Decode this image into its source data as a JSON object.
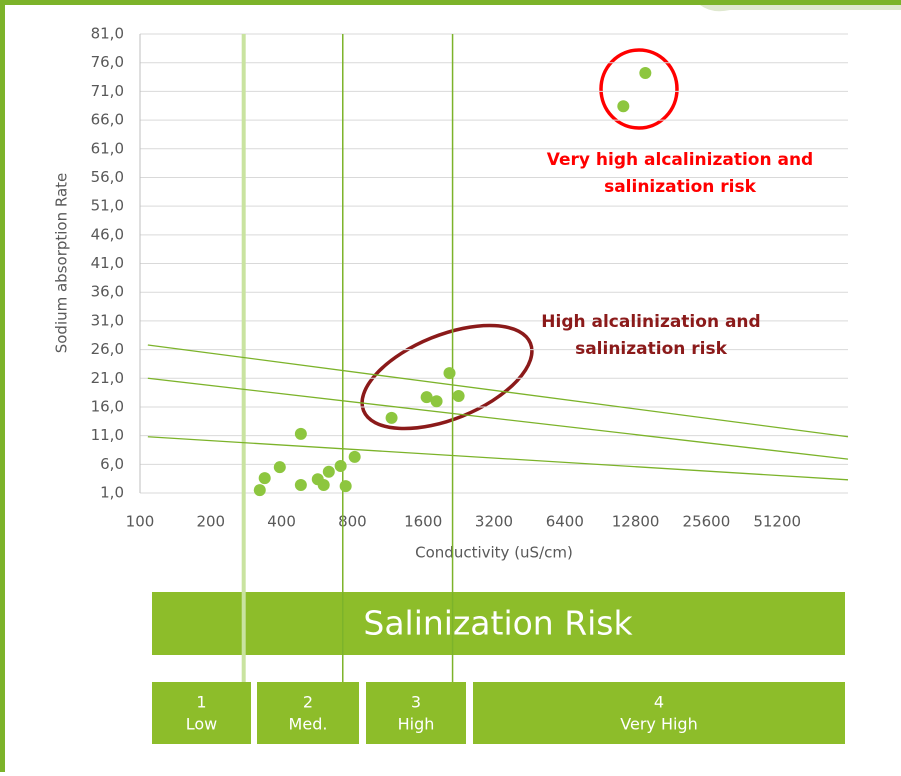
{
  "chart_data": {
    "type": "scatter",
    "x_label": "Conductivity (uS/cm)",
    "y_label": "Sodium absorption Rate",
    "xscale": "log2",
    "xlim": [
      100,
      102400
    ],
    "xticks": [
      100,
      200,
      400,
      800,
      1600,
      3200,
      6400,
      12800,
      25600,
      51200
    ],
    "ylim": [
      1,
      81
    ],
    "yticks": [
      {
        "value": 1,
        "label": "1,0"
      },
      {
        "value": 6,
        "label": "6,0"
      },
      {
        "value": 11,
        "label": "11,0"
      },
      {
        "value": 16,
        "label": "16,0"
      },
      {
        "value": 21,
        "label": "21,0"
      },
      {
        "value": 26,
        "label": "26,0"
      },
      {
        "value": 31,
        "label": "31,0"
      },
      {
        "value": 36,
        "label": "36,0"
      },
      {
        "value": 41,
        "label": "41,0"
      },
      {
        "value": 46,
        "label": "46,0"
      },
      {
        "value": 51,
        "label": "51,0"
      },
      {
        "value": 56,
        "label": "56,0"
      },
      {
        "value": 61,
        "label": "61,0"
      },
      {
        "value": 66,
        "label": "66,0"
      },
      {
        "value": 71,
        "label": "71,0"
      },
      {
        "value": 76,
        "label": "76,0"
      },
      {
        "value": 81,
        "label": "81,0"
      }
    ],
    "grid": true,
    "point_color": "#8dc63f",
    "points": {
      "x": [
        323,
        339,
        393,
        483,
        483,
        570,
        604,
        635,
        713,
        749,
        818,
        1174,
        1655,
        1824,
        2070,
        2263,
        11350,
        14080
      ],
      "y": [
        1.5,
        3.6,
        5.5,
        11.3,
        2.4,
        3.4,
        2.4,
        4.7,
        5.7,
        2.2,
        7.3,
        14.1,
        17.7,
        17.0,
        21.9,
        17.9,
        68.4,
        74.2
      ]
    },
    "line_color": "#7cb32a",
    "lines": [
      {
        "x": [
          108,
          102400
        ],
        "y": [
          26.8,
          10.8
        ]
      },
      {
        "x": [
          108,
          102400
        ],
        "y": [
          21.0,
          6.9
        ]
      },
      {
        "x": [
          108,
          102400
        ],
        "y": [
          10.8,
          3.3
        ]
      }
    ],
    "thresholds": [
      {
        "x": 276,
        "color": "#c9e3a0"
      },
      {
        "x": 728,
        "color": "#7cb32a"
      },
      {
        "x": 2133,
        "color": "#7cb32a"
      }
    ],
    "annotations": [
      {
        "lines": [
          "Very high alcalinization and",
          "salinization risk"
        ],
        "color": "#ff0000"
      },
      {
        "lines": [
          "High alcalinization and",
          "salinization risk"
        ],
        "color": "#8b1a1a"
      }
    ]
  },
  "risk_banner": {
    "title": "Salinization Risk",
    "classes": [
      {
        "number": "1",
        "label": "Low"
      },
      {
        "number": "2",
        "label": "Med."
      },
      {
        "number": "3",
        "label": "High"
      },
      {
        "number": "4",
        "label": "Very High"
      }
    ]
  }
}
